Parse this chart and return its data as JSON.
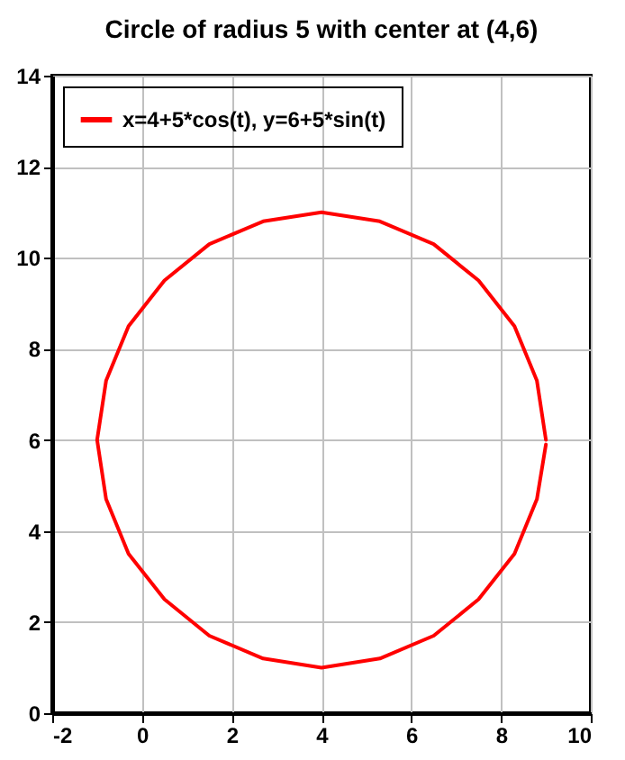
{
  "chart_data": {
    "type": "line",
    "title": "Circle of radius 5 with center at (4,6)",
    "series": [
      {
        "name": "x=4+5*cos(t), y=6+5*sin(t)",
        "color": "#ff0000",
        "x": [
          9,
          8.8,
          8.3,
          7.5,
          6.5,
          5.3,
          4,
          2.7,
          1.5,
          0.5,
          -0.3,
          -0.8,
          -1,
          -0.8,
          -0.3,
          0.5,
          1.5,
          2.7,
          4,
          5.3,
          6.5,
          7.5,
          8.3,
          8.8,
          9
        ],
        "values": [
          6,
          7.3,
          8.5,
          9.5,
          10.3,
          10.8,
          11,
          10.8,
          10.3,
          9.5,
          8.5,
          7.3,
          6,
          4.7,
          3.5,
          2.5,
          1.7,
          1.2,
          1,
          1.2,
          1.7,
          2.5,
          3.5,
          4.7,
          5.9
        ]
      }
    ],
    "xlim": [
      -2,
      10
    ],
    "xticks": [
      -2,
      0,
      2,
      4,
      6,
      8,
      10
    ],
    "ylim": [
      0,
      14
    ],
    "yticks": [
      0,
      2,
      4,
      6,
      8,
      10,
      12,
      14
    ],
    "grid": true,
    "legend": "top left",
    "marker": "none",
    "line_style": "solid"
  }
}
